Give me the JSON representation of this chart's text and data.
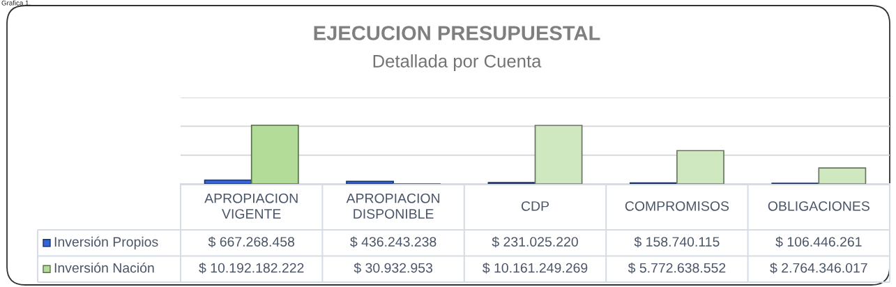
{
  "chart_data": {
    "type": "bar",
    "title": "EJECUCION PRESUPUESTAL",
    "subtitle": "Detallada por Cuenta",
    "annotations": [
      "Grafica 1."
    ],
    "categories": [
      "APROPIACION VIGENTE",
      "APROPIACION DISPONIBLE",
      "CDP",
      "COMPROMISOS",
      "OBLIGACIONES"
    ],
    "series": [
      {
        "name": "Inversión Propios",
        "color": "#3565d6",
        "values": [
          667268458,
          436243238,
          231025220,
          158740115,
          106446261
        ],
        "value_labels": [
          "$ 667.268.458",
          "$ 436.243.238",
          "$ 231.025.220",
          "$ 158.740.115",
          "$ 106.446.261"
        ]
      },
      {
        "name": "Inversión Nación",
        "color": "#b3dc98",
        "colors": [
          "#b3dc98",
          "#d0e8c0",
          "#d0e8c0",
          "#d0e8c0",
          "#d0e8c0"
        ],
        "values": [
          10192182222,
          30932953,
          10161249269,
          5772638552,
          2764346017
        ],
        "value_labels": [
          "$ 10.192.182.222",
          "$ 30.932.953",
          "$ 10.161.249.269",
          "$ 5.772.638.552",
          "$ 2.764.346.017"
        ]
      }
    ],
    "ylim": [
      0,
      15000000000
    ],
    "yticks": [
      {
        "value": 0,
        "label": null
      },
      {
        "value": 5000000000,
        "label": null
      },
      {
        "value": 10000000000,
        "label": null
      },
      {
        "value": 15000000000,
        "label": null
      }
    ],
    "grid": "y",
    "tick_labels": "x",
    "legend": "bottom left"
  }
}
